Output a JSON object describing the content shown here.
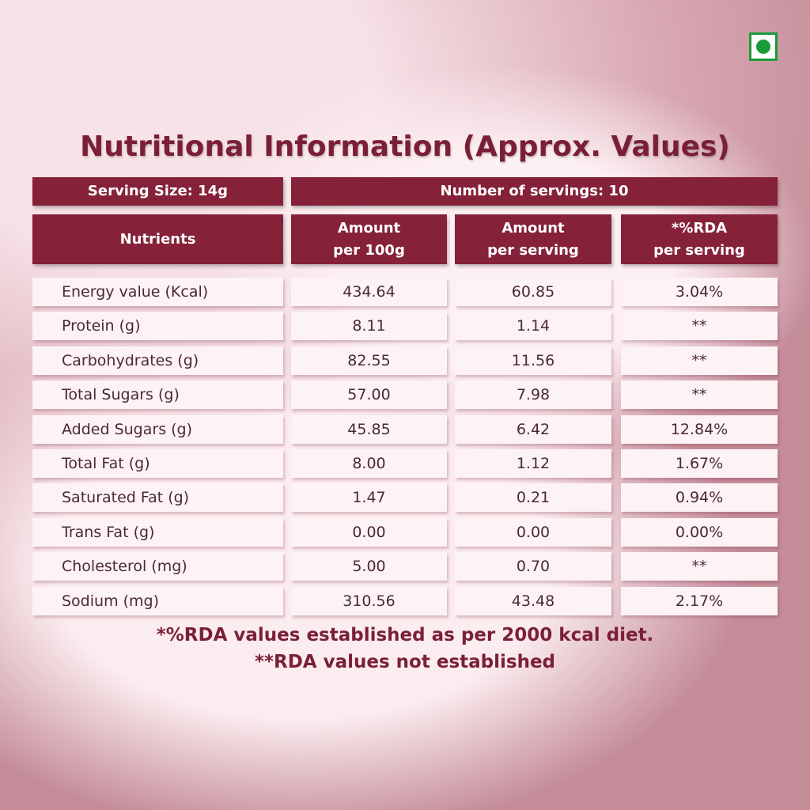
{
  "title": "Nutritional Information (Approx. Values)",
  "serving": {
    "size": "Serving Size: 14g",
    "count": "Number of servings: 10"
  },
  "table": {
    "header": [
      [
        "Nutrients"
      ],
      [
        "Amount",
        "per 100g"
      ],
      [
        "Amount",
        "per serving"
      ],
      [
        "*%RDA",
        "per serving"
      ]
    ],
    "rows": [
      [
        "Energy value (Kcal)",
        "434.64",
        "60.85",
        "3.04%"
      ],
      [
        "Protein (g)",
        "8.11",
        "1.14",
        "**"
      ],
      [
        "Carbohydrates (g)",
        "82.55",
        "11.56",
        "**"
      ],
      [
        "Total Sugars (g)",
        "57.00",
        "7.98",
        "**"
      ],
      [
        "Added Sugars (g)",
        "45.85",
        "6.42",
        "12.84%"
      ],
      [
        "Total Fat (g)",
        "8.00",
        "1.12",
        "1.67%"
      ],
      [
        "Saturated Fat (g)",
        "1.47",
        "0.21",
        "0.94%"
      ],
      [
        "Trans Fat (g)",
        "0.00",
        "0.00",
        "0.00%"
      ],
      [
        "Cholesterol (mg)",
        "5.00",
        "0.70",
        "**"
      ],
      [
        "Sodium (mg)",
        "310.56",
        "43.48",
        "2.17%"
      ]
    ]
  },
  "footnotes": [
    "*%RDA values established as per 2000 kcal diet.",
    "**RDA values not established"
  ]
}
